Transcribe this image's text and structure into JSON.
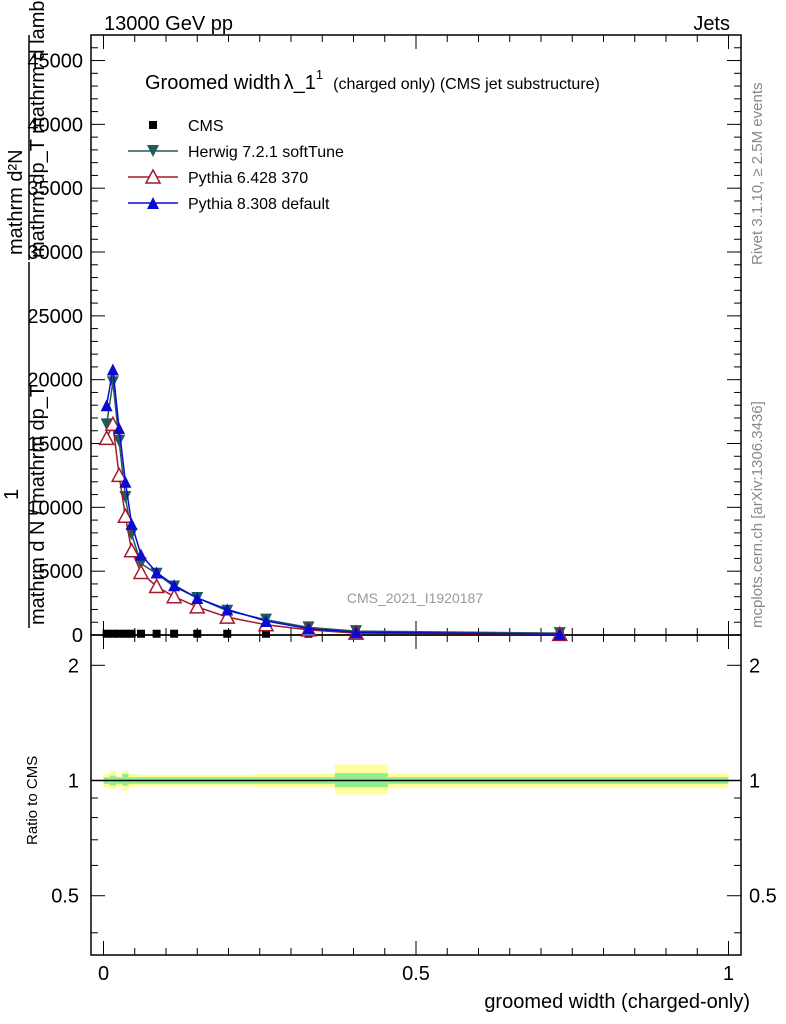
{
  "header": {
    "energy_label": "13000 GeV pp",
    "process_label": "Jets",
    "rivet_label": "Rivet 3.1.10, ≥ 2.5M events",
    "mcplots_label": "mcplots.cern.ch [arXiv:1306.3436]",
    "analysis_label": "CMS_2021_I1920187"
  },
  "chart_data": {
    "type": "line",
    "title": "Groomed width",
    "title_symbol": "λ_1",
    "title_superscript": "1",
    "title_suffix": "(charged only) (CMS jet substructure)",
    "ylabel_lines": [
      "mathrm d²N",
      "mathrm dp_T mathrm d lambda",
      "1",
      "mathrm d N / mathrm dp_T"
    ],
    "xlabel": "groomed width (charged-only)",
    "ratio_ylabel": "Ratio to CMS",
    "main_yticks": [
      "0",
      "5000",
      "10000",
      "15000",
      "20000",
      "25000",
      "30000",
      "35000",
      "40000",
      "45000"
    ],
    "ylim": [
      0,
      47000
    ],
    "xlim": [
      -0.02,
      1.02
    ],
    "x_ticks": [
      "0",
      "0.5",
      "1"
    ],
    "ratio_yticks": [
      "0.5",
      "1",
      "2"
    ],
    "ratio_ylim": [
      0.35,
      2.4
    ],
    "ratio_yscale": "log",
    "legend_placement": "top-left",
    "x": [
      0.01,
      0.02,
      0.03,
      0.04,
      0.05,
      0.06,
      0.07,
      0.08,
      0.09,
      0.1
    ],
    "series": [
      {
        "name": "CMS",
        "marker": "square",
        "color": "#000000",
        "x": [
          0.005,
          0.015,
          0.025,
          0.035,
          0.045,
          0.06,
          0.085,
          0.113,
          0.15,
          0.198,
          0.26,
          0.328,
          0.404,
          0.73
        ],
        "values": [
          100,
          100,
          100,
          100,
          100,
          100,
          100,
          100,
          100,
          100,
          100,
          100,
          100,
          100
        ]
      },
      {
        "name": "Herwig 7.2.1 softTune",
        "marker": "triangle-down",
        "color": "#1f5c5c",
        "x": [
          0.005,
          0.015,
          0.025,
          0.035,
          0.045,
          0.06,
          0.085,
          0.113,
          0.15,
          0.198,
          0.26,
          0.328,
          0.404,
          0.73
        ],
        "values": [
          16500,
          19800,
          15200,
          10800,
          7900,
          5600,
          4800,
          3800,
          2900,
          1900,
          1200,
          600,
          300,
          150
        ]
      },
      {
        "name": "Pythia 6.428 370",
        "marker": "triangle-up-open",
        "color": "#a31a2c",
        "x": [
          0.005,
          0.015,
          0.025,
          0.035,
          0.045,
          0.06,
          0.085,
          0.113,
          0.15,
          0.198,
          0.26,
          0.328,
          0.404,
          0.73
        ],
        "values": [
          15400,
          16500,
          12500,
          9300,
          6600,
          4900,
          3800,
          3000,
          2200,
          1400,
          800,
          400,
          150,
          50
        ]
      },
      {
        "name": "Pythia 8.308 default",
        "marker": "triangle-up",
        "color": "#0a0ad0",
        "x": [
          0.005,
          0.015,
          0.025,
          0.035,
          0.045,
          0.06,
          0.085,
          0.113,
          0.15,
          0.198,
          0.26,
          0.328,
          0.404,
          0.73
        ],
        "values": [
          18000,
          20800,
          16200,
          12000,
          8700,
          6300,
          4900,
          3900,
          2900,
          2000,
          1100,
          500,
          220,
          70
        ]
      }
    ],
    "ratio_bands": [
      {
        "x0": 0.0,
        "x1": 0.01,
        "inner": [
          0.98,
          1.02
        ],
        "outer": [
          0.96,
          1.04
        ]
      },
      {
        "x0": 0.01,
        "x1": 0.02,
        "inner": [
          0.97,
          1.03
        ],
        "outer": [
          0.95,
          1.06
        ]
      },
      {
        "x0": 0.02,
        "x1": 0.03,
        "inner": [
          0.98,
          1.02
        ],
        "outer": [
          0.96,
          1.03
        ]
      },
      {
        "x0": 0.03,
        "x1": 0.04,
        "inner": [
          0.97,
          1.04
        ],
        "outer": [
          0.94,
          1.06
        ]
      },
      {
        "x0": 0.04,
        "x1": 0.05,
        "inner": [
          0.98,
          1.02
        ],
        "outer": [
          0.96,
          1.04
        ]
      },
      {
        "x0": 0.05,
        "x1": 0.24,
        "inner": [
          0.98,
          1.02
        ],
        "outer": [
          0.965,
          1.035
        ]
      },
      {
        "x0": 0.24,
        "x1": 0.37,
        "inner": [
          0.98,
          1.02
        ],
        "outer": [
          0.96,
          1.04
        ]
      },
      {
        "x0": 0.37,
        "x1": 0.455,
        "inner": [
          0.96,
          1.045
        ],
        "outer": [
          0.92,
          1.1
        ]
      },
      {
        "x0": 0.455,
        "x1": 1.0,
        "inner": [
          0.98,
          1.02
        ],
        "outer": [
          0.955,
          1.045
        ]
      }
    ]
  }
}
